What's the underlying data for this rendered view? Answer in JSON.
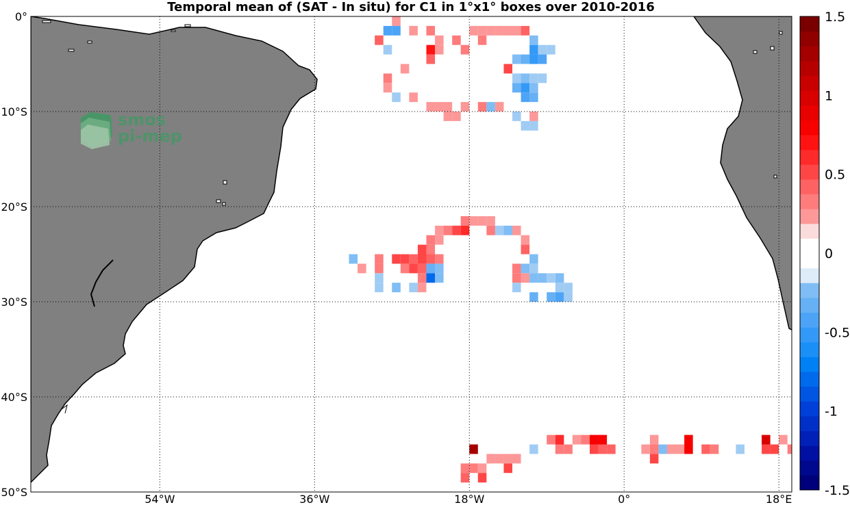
{
  "title": "Temporal mean of (SAT - In situ) for C1 in 1°x1° boxes over 2010-2016",
  "map": {
    "lon_range": [
      -69,
      19.5
    ],
    "lat_range": [
      -50,
      0
    ],
    "lat_ticks": [
      {
        "value": 0,
        "label": "0°"
      },
      {
        "value": -10,
        "label": "10°S"
      },
      {
        "value": -20,
        "label": "20°S"
      },
      {
        "value": -30,
        "label": "30°S"
      },
      {
        "value": -40,
        "label": "40°S"
      },
      {
        "value": -50,
        "label": "50°S"
      }
    ],
    "lon_ticks": [
      {
        "value": -54,
        "label": "54°W"
      },
      {
        "value": -36,
        "label": "36°W"
      },
      {
        "value": -18,
        "label": "18°W"
      },
      {
        "value": 0,
        "label": "0°"
      },
      {
        "value": 18,
        "label": "18°E"
      }
    ],
    "land_color": "#808080",
    "grid": "dotted"
  },
  "watermark": {
    "line1": "smos",
    "line2": "pi-mep",
    "color": "#3f9a63"
  },
  "colorbar": {
    "range": [
      -1.5,
      1.5
    ],
    "steps": 32,
    "ticks": [
      {
        "value": 1.5,
        "label": "1.5"
      },
      {
        "value": 1,
        "label": "1"
      },
      {
        "value": 0.5,
        "label": "0.5"
      },
      {
        "value": 0,
        "label": "0"
      },
      {
        "value": -0.5,
        "label": "-0.5"
      },
      {
        "value": -1,
        "label": "-1"
      },
      {
        "value": -1.5,
        "label": "-1.5"
      }
    ]
  },
  "chart_data": {
    "type": "heatmap",
    "title": "Temporal mean of (SAT - In situ) for C1 in 1°x1° boxes over 2010-2016",
    "cell_size_deg": 1,
    "value_range": [
      -1.5,
      1.5
    ],
    "cells": [
      {
        "lon": -26.5,
        "lat": -0.5,
        "v": 0.2
      },
      {
        "lon": -27.5,
        "lat": -1.5,
        "v": -0.4
      },
      {
        "lon": -26.5,
        "lat": -1.5,
        "v": -0.4
      },
      {
        "lon": -28.5,
        "lat": -2.5,
        "v": 0.4
      },
      {
        "lon": -24.5,
        "lat": -1.5,
        "v": 0.2
      },
      {
        "lon": -22.5,
        "lat": -1.5,
        "v": 0.3
      },
      {
        "lon": -21.5,
        "lat": -2.5,
        "v": 0.2
      },
      {
        "lon": -22.5,
        "lat": -3.5,
        "v": 0.7
      },
      {
        "lon": -22.5,
        "lat": -4.5,
        "v": 0.4
      },
      {
        "lon": -21.5,
        "lat": -3.5,
        "v": 0.2
      },
      {
        "lon": -19.5,
        "lat": -2.5,
        "v": 0.3
      },
      {
        "lon": -18.5,
        "lat": -3.5,
        "v": 0.3
      },
      {
        "lon": -17.5,
        "lat": -1.5,
        "v": 0.25
      },
      {
        "lon": -16.5,
        "lat": -2.5,
        "v": 0.3
      },
      {
        "lon": -16.5,
        "lat": -1.5,
        "v": 0.2
      },
      {
        "lon": -15.5,
        "lat": -1.5,
        "v": 0.2
      },
      {
        "lon": -14.5,
        "lat": -1.5,
        "v": 0.2
      },
      {
        "lon": -13.5,
        "lat": -1.5,
        "v": 0.2
      },
      {
        "lon": -12.5,
        "lat": -1.5,
        "v": 0.25
      },
      {
        "lon": -11.5,
        "lat": -1.5,
        "v": 0.45
      },
      {
        "lon": -10.5,
        "lat": -2.5,
        "v": -0.2
      },
      {
        "lon": -10.5,
        "lat": -3.5,
        "v": -0.5
      },
      {
        "lon": -10.5,
        "lat": -4.5,
        "v": -0.5
      },
      {
        "lon": -9.5,
        "lat": -3.5,
        "v": -0.1
      },
      {
        "lon": -9.5,
        "lat": -4.5,
        "v": -0.4
      },
      {
        "lon": -11.5,
        "lat": -4.5,
        "v": -0.3
      },
      {
        "lon": -12.5,
        "lat": -4.5,
        "v": -0.2
      },
      {
        "lon": -8.5,
        "lat": -3.5,
        "v": -0.1
      },
      {
        "lon": -27.5,
        "lat": -3.5,
        "v": -0.1
      },
      {
        "lon": -13.5,
        "lat": -5.5,
        "v": 0.5
      },
      {
        "lon": -25.5,
        "lat": -5.5,
        "v": 0.2
      },
      {
        "lon": -27.5,
        "lat": -6.5,
        "v": 0.3
      },
      {
        "lon": -27.5,
        "lat": -7.5,
        "v": 0.2
      },
      {
        "lon": -26.5,
        "lat": -8.5,
        "v": -0.1
      },
      {
        "lon": -24.5,
        "lat": -8.5,
        "v": 0.2
      },
      {
        "lon": -12.5,
        "lat": -6.5,
        "v": -0.1
      },
      {
        "lon": -11.5,
        "lat": -6.5,
        "v": -0.2
      },
      {
        "lon": -10.5,
        "lat": -6.5,
        "v": -0.1
      },
      {
        "lon": -9.5,
        "lat": -6.5,
        "v": -0.1
      },
      {
        "lon": -12.5,
        "lat": -7.5,
        "v": -0.3
      },
      {
        "lon": -11.5,
        "lat": -7.5,
        "v": -0.5
      },
      {
        "lon": -10.5,
        "lat": -7.5,
        "v": -0.2
      },
      {
        "lon": -11.5,
        "lat": -8.5,
        "v": -0.4
      },
      {
        "lon": -10.5,
        "lat": -8.5,
        "v": -0.3
      },
      {
        "lon": -22.5,
        "lat": -9.5,
        "v": 0.2
      },
      {
        "lon": -21.5,
        "lat": -9.5,
        "v": 0.2
      },
      {
        "lon": -20.5,
        "lat": -9.5,
        "v": 0.2
      },
      {
        "lon": -20.5,
        "lat": -10.5,
        "v": 0.2
      },
      {
        "lon": -19.5,
        "lat": -10.5,
        "v": 0.2
      },
      {
        "lon": -18.5,
        "lat": -9.5,
        "v": 0.2
      },
      {
        "lon": -16.5,
        "lat": -9.5,
        "v": 0.3
      },
      {
        "lon": -15.5,
        "lat": -9.5,
        "v": -0.2
      },
      {
        "lon": -14.5,
        "lat": -9.5,
        "v": 0.2
      },
      {
        "lon": -12.5,
        "lat": -10.5,
        "v": -0.1
      },
      {
        "lon": -11.5,
        "lat": -11.5,
        "v": -0.1
      },
      {
        "lon": -10.5,
        "lat": -10.5,
        "v": 0.2
      },
      {
        "lon": -10.5,
        "lat": -11.5,
        "v": -0.1
      },
      {
        "lon": -18.5,
        "lat": -21.5,
        "v": 0.35
      },
      {
        "lon": -17.5,
        "lat": -21.5,
        "v": 0.2
      },
      {
        "lon": -16.5,
        "lat": -21.5,
        "v": 0.2
      },
      {
        "lon": -15.5,
        "lat": -21.5,
        "v": 0.2
      },
      {
        "lon": -18.5,
        "lat": -22.5,
        "v": 0.65
      },
      {
        "lon": -19.5,
        "lat": -22.5,
        "v": 0.5
      },
      {
        "lon": -20.5,
        "lat": -22.5,
        "v": 0.3
      },
      {
        "lon": -21.5,
        "lat": -22.5,
        "v": 0.2
      },
      {
        "lon": -15.5,
        "lat": -22.5,
        "v": 0.3
      },
      {
        "lon": -14.5,
        "lat": -22.5,
        "v": -0.1
      },
      {
        "lon": -13.5,
        "lat": -22.5,
        "v": -0.2
      },
      {
        "lon": -12.5,
        "lat": -22.5,
        "v": 0.25
      },
      {
        "lon": -22.5,
        "lat": -23.5,
        "v": 0.3
      },
      {
        "lon": -21.5,
        "lat": -23.5,
        "v": 0.2
      },
      {
        "lon": -11.5,
        "lat": -23.5,
        "v": 0.2
      },
      {
        "lon": -23.5,
        "lat": -24.5,
        "v": 0.5
      },
      {
        "lon": -22.5,
        "lat": -24.5,
        "v": 0.3
      },
      {
        "lon": -11.5,
        "lat": -24.5,
        "v": 0.4
      },
      {
        "lon": -24.5,
        "lat": -25.5,
        "v": 0.4
      },
      {
        "lon": -23.5,
        "lat": -25.5,
        "v": 0.5
      },
      {
        "lon": -22.5,
        "lat": -25.5,
        "v": 0.4
      },
      {
        "lon": -21.5,
        "lat": -25.5,
        "v": 0.3
      },
      {
        "lon": -26.5,
        "lat": -25.5,
        "v": 0.5
      },
      {
        "lon": -25.5,
        "lat": -25.5,
        "v": 0.5
      },
      {
        "lon": -31.5,
        "lat": -25.5,
        "v": -0.2
      },
      {
        "lon": -28.5,
        "lat": -25.5,
        "v": 0.35
      },
      {
        "lon": -10.5,
        "lat": -25.5,
        "v": -0.2
      },
      {
        "lon": -25.5,
        "lat": -26.5,
        "v": 0.3
      },
      {
        "lon": -24.5,
        "lat": -26.5,
        "v": 0.5
      },
      {
        "lon": -23.5,
        "lat": -26.5,
        "v": 0.4
      },
      {
        "lon": -22.5,
        "lat": -26.5,
        "v": -0.3
      },
      {
        "lon": -21.5,
        "lat": -26.5,
        "v": -0.2
      },
      {
        "lon": -28.5,
        "lat": -26.5,
        "v": 0.3
      },
      {
        "lon": -30.5,
        "lat": -26.5,
        "v": 0.2
      },
      {
        "lon": -12.5,
        "lat": -26.5,
        "v": 0.3
      },
      {
        "lon": -11.5,
        "lat": -26.5,
        "v": -0.2
      },
      {
        "lon": -10.5,
        "lat": -26.5,
        "v": -0.1
      },
      {
        "lon": -23.5,
        "lat": -27.5,
        "v": 0.3
      },
      {
        "lon": -22.5,
        "lat": -27.5,
        "v": -0.8
      },
      {
        "lon": -21.5,
        "lat": -27.5,
        "v": -0.2
      },
      {
        "lon": -28.5,
        "lat": -27.5,
        "v": -0.1
      },
      {
        "lon": -12.5,
        "lat": -27.5,
        "v": 0.3
      },
      {
        "lon": -11.5,
        "lat": -27.5,
        "v": 0.2
      },
      {
        "lon": -10.5,
        "lat": -27.5,
        "v": -0.2
      },
      {
        "lon": -9.5,
        "lat": -27.5,
        "v": -0.2
      },
      {
        "lon": -8.5,
        "lat": -27.5,
        "v": -0.1
      },
      {
        "lon": -7.5,
        "lat": -27.5,
        "v": -0.2
      },
      {
        "lon": -28.5,
        "lat": -28.5,
        "v": -0.1
      },
      {
        "lon": -26.5,
        "lat": -28.5,
        "v": -0.2
      },
      {
        "lon": -24.5,
        "lat": -28.5,
        "v": -0.1
      },
      {
        "lon": -23.5,
        "lat": -28.5,
        "v": 0.2
      },
      {
        "lon": -12.5,
        "lat": -28.5,
        "v": -0.1
      },
      {
        "lon": -7.5,
        "lat": -28.5,
        "v": -0.1
      },
      {
        "lon": -6.5,
        "lat": -28.5,
        "v": -0.1
      },
      {
        "lon": -10.5,
        "lat": -29.5,
        "v": -0.3
      },
      {
        "lon": -8.5,
        "lat": -29.5,
        "v": -0.3
      },
      {
        "lon": -7.5,
        "lat": -29.5,
        "v": -0.4
      },
      {
        "lon": -6.5,
        "lat": -29.5,
        "v": -0.1
      },
      {
        "lon": -17.5,
        "lat": -45.5,
        "v": 1.3
      },
      {
        "lon": -18.5,
        "lat": -47.5,
        "v": 0.3
      },
      {
        "lon": -18.5,
        "lat": -48.5,
        "v": 0.4
      },
      {
        "lon": -17.5,
        "lat": -47.5,
        "v": 0.3
      },
      {
        "lon": -16.5,
        "lat": -47.5,
        "v": 0.2
      },
      {
        "lon": -16.5,
        "lat": -48.5,
        "v": 0.5
      },
      {
        "lon": -15.5,
        "lat": -46.5,
        "v": 0.2
      },
      {
        "lon": -14.5,
        "lat": -46.5,
        "v": 0.2
      },
      {
        "lon": -13.5,
        "lat": -46.5,
        "v": 0.2
      },
      {
        "lon": -13.5,
        "lat": -47.5,
        "v": 0.5
      },
      {
        "lon": -12.5,
        "lat": -46.5,
        "v": 0.2
      },
      {
        "lon": -10.5,
        "lat": -45.5,
        "v": -0.1
      },
      {
        "lon": -8.5,
        "lat": -44.5,
        "v": 0.3
      },
      {
        "lon": -7.5,
        "lat": -44.5,
        "v": 0.6
      },
      {
        "lon": -7.5,
        "lat": -45.5,
        "v": 0.3
      },
      {
        "lon": -6.5,
        "lat": -45.5,
        "v": 0.3
      },
      {
        "lon": -5.5,
        "lat": -44.5,
        "v": 0.2
      },
      {
        "lon": -4.5,
        "lat": -44.5,
        "v": 0.3
      },
      {
        "lon": -3.5,
        "lat": -44.5,
        "v": 0.8
      },
      {
        "lon": -2.5,
        "lat": -44.5,
        "v": 0.8
      },
      {
        "lon": -3.5,
        "lat": -45.5,
        "v": 0.5
      },
      {
        "lon": -2.5,
        "lat": -45.5,
        "v": 0.4
      },
      {
        "lon": -1.5,
        "lat": -45.5,
        "v": 0.4
      },
      {
        "lon": 2.5,
        "lat": -45.5,
        "v": 0.2
      },
      {
        "lon": 3.5,
        "lat": -44.5,
        "v": 0.2
      },
      {
        "lon": 3.5,
        "lat": -45.5,
        "v": 0.3
      },
      {
        "lon": 3.5,
        "lat": -46.5,
        "v": 0.5
      },
      {
        "lon": 4.5,
        "lat": -45.5,
        "v": -0.2
      },
      {
        "lon": 5.5,
        "lat": -45.5,
        "v": 0.2
      },
      {
        "lon": 6.5,
        "lat": -45.5,
        "v": 0.2
      },
      {
        "lon": 7.5,
        "lat": -44.5,
        "v": 0.8
      },
      {
        "lon": 7.5,
        "lat": -45.5,
        "v": 0.8
      },
      {
        "lon": 9.5,
        "lat": -45.5,
        "v": 0.4
      },
      {
        "lon": 10.5,
        "lat": -45.5,
        "v": 0.3
      },
      {
        "lon": 13.5,
        "lat": -45.5,
        "v": -0.1
      },
      {
        "lon": 16.5,
        "lat": -44.5,
        "v": 1.0
      },
      {
        "lon": 16.5,
        "lat": -45.5,
        "v": 0.5
      },
      {
        "lon": 17.5,
        "lat": -45.5,
        "v": 0.5
      },
      {
        "lon": 18.5,
        "lat": -44.5,
        "v": 0.2
      },
      {
        "lon": 19.5,
        "lat": -45.5,
        "v": 0.3
      }
    ]
  }
}
